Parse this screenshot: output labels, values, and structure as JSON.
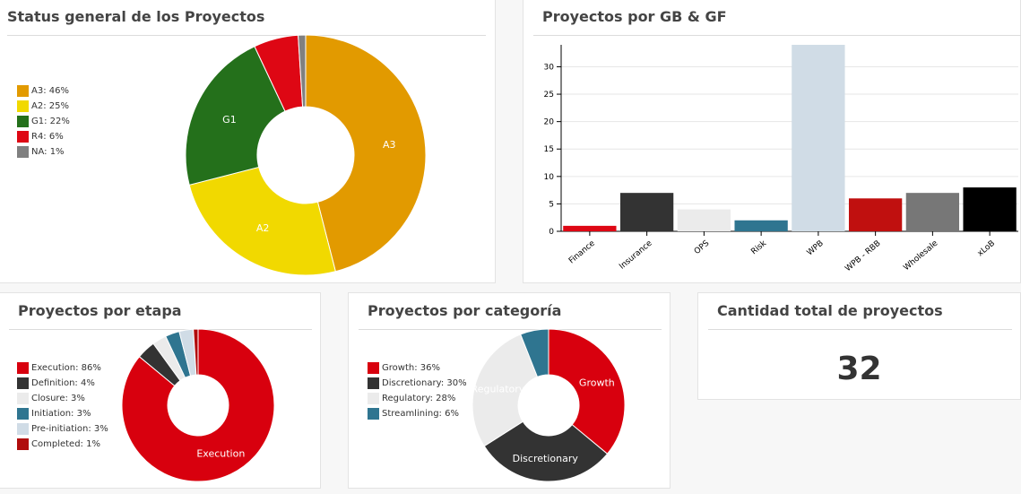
{
  "panels": {
    "status": {
      "title": "Status general de los Proyectos"
    },
    "gb": {
      "title": "Proyectos por GB & GF"
    },
    "etapa": {
      "title": "Proyectos por etapa"
    },
    "categoria": {
      "title": "Proyectos por categoría"
    },
    "total": {
      "title": "Cantidad total de proyectos",
      "value": "32"
    }
  },
  "chart_data": [
    {
      "id": "status",
      "type": "pie",
      "title": "Status general de los Proyectos",
      "donut": true,
      "slices": [
        {
          "label": "A3",
          "legend": "A3: 46%",
          "percent": 46,
          "color": "#e29a00",
          "slice_label": "A3",
          "label_color": "#ffffff"
        },
        {
          "label": "A2",
          "legend": "A2: 25%",
          "percent": 25,
          "color": "#f1d900",
          "slice_label": "A2",
          "label_color": "#ffffff"
        },
        {
          "label": "G1",
          "legend": "G1: 22%",
          "percent": 22,
          "color": "#24701b",
          "slice_label": "G1",
          "label_color": "#ffffff"
        },
        {
          "label": "R4",
          "legend": "R4: 6%",
          "percent": 6,
          "color": "#de0714",
          "slice_label": "",
          "label_color": "#ffffff"
        },
        {
          "label": "NA",
          "legend": "NA: 1%",
          "percent": 1,
          "color": "#808080",
          "slice_label": "",
          "label_color": "#ffffff"
        }
      ]
    },
    {
      "id": "gb",
      "type": "bar",
      "title": "Proyectos por GB & GF",
      "categories": [
        "Finance",
        "Insurance",
        "OPS",
        "Risk",
        "WPB",
        "WPB - RBB",
        "Wholesale",
        "xLoB"
      ],
      "values": [
        1,
        7,
        4,
        2,
        34,
        6,
        7,
        8
      ],
      "colors": [
        "#de0714",
        "#333333",
        "#ebebeb",
        "#2f7590",
        "#d0dce6",
        "#c0100f",
        "#777777",
        "#000000"
      ],
      "ylim": [
        0,
        34
      ],
      "yticks": [
        0,
        5,
        10,
        15,
        20,
        25,
        30
      ],
      "grid": true
    },
    {
      "id": "etapa",
      "type": "pie",
      "title": "Proyectos por etapa",
      "donut": true,
      "slices": [
        {
          "label": "Execution",
          "legend": "Execution: 86%",
          "percent": 86,
          "color": "#d8000e",
          "slice_label": "Execution",
          "label_color": "#ffffff"
        },
        {
          "label": "Definition",
          "legend": "Definition: 4%",
          "percent": 4,
          "color": "#333333",
          "slice_label": "",
          "label_color": "#ffffff"
        },
        {
          "label": "Closure",
          "legend": "Closure: 3%",
          "percent": 3,
          "color": "#ebebeb",
          "slice_label": "",
          "label_color": "#ffffff"
        },
        {
          "label": "Initiation",
          "legend": "Initiation: 3%",
          "percent": 3,
          "color": "#2f7590",
          "slice_label": "",
          "label_color": "#ffffff"
        },
        {
          "label": "Pre-initiation",
          "legend": "Pre-initiation: 3%",
          "percent": 3,
          "color": "#d0dce6",
          "slice_label": "",
          "label_color": "#ffffff"
        },
        {
          "label": "Completed",
          "legend": "Completed: 1%",
          "percent": 1,
          "color": "#b00c0c",
          "slice_label": "",
          "label_color": "#ffffff"
        }
      ]
    },
    {
      "id": "categoria",
      "type": "pie",
      "title": "Proyectos por categoría",
      "donut": true,
      "slices": [
        {
          "label": "Growth",
          "legend": "Growth: 36%",
          "percent": 36,
          "color": "#d8000e",
          "slice_label": "Growth",
          "label_color": "#ffffff"
        },
        {
          "label": "Discretionary",
          "legend": "Discretionary: 30%",
          "percent": 30,
          "color": "#333333",
          "slice_label": "Discretionary",
          "label_color": "#ffffff"
        },
        {
          "label": "Regulatory",
          "legend": "Regulatory: 28%",
          "percent": 28,
          "color": "#ebebeb",
          "slice_label": "Regulatory",
          "label_color": "#ffffff"
        },
        {
          "label": "Streamlining",
          "legend": "Streamlining: 6%",
          "percent": 6,
          "color": "#2f7590",
          "slice_label": "",
          "label_color": "#ffffff"
        }
      ]
    }
  ]
}
